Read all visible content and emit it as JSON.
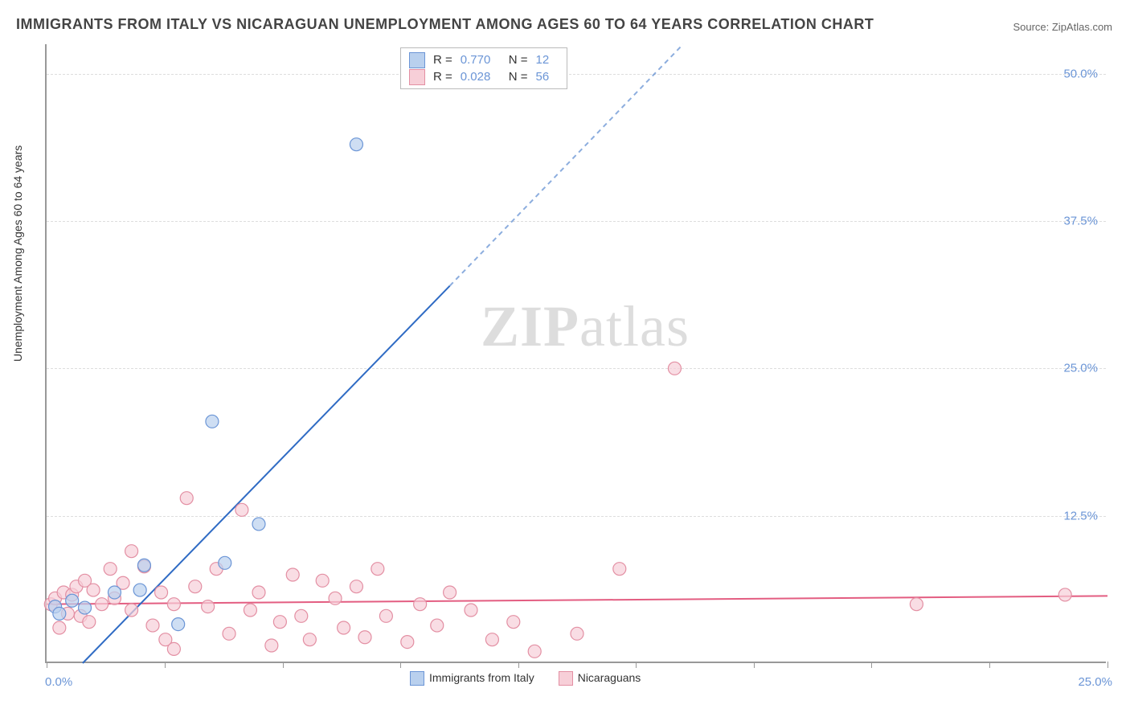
{
  "title": "IMMIGRANTS FROM ITALY VS NICARAGUAN UNEMPLOYMENT AMONG AGES 60 TO 64 YEARS CORRELATION CHART",
  "source": "Source: ZipAtlas.com",
  "yaxis_label": "Unemployment Among Ages 60 to 64 years",
  "watermark_bold": "ZIP",
  "watermark_rest": "atlas",
  "chart": {
    "type": "scatter-correlation",
    "background_color": "#ffffff",
    "grid_color": "#dddddd",
    "axis_color": "#999999",
    "xlim": [
      0.0,
      25.0
    ],
    "ylim": [
      0.0,
      52.5
    ],
    "ytick_labels": [
      "12.5%",
      "25.0%",
      "37.5%",
      "50.0%"
    ],
    "ytick_values": [
      12.5,
      25.0,
      37.5,
      50.0
    ],
    "xtick_values": [
      0,
      2.78,
      5.56,
      8.33,
      11.11,
      13.89,
      16.67,
      19.44,
      22.22,
      25.0
    ],
    "xaxis_start": "0.0%",
    "xaxis_end": "25.0%",
    "ytick_color": "#6b95d6",
    "marker_radius": 8,
    "marker_stroke_width": 1.2,
    "line_width": 2,
    "series": [
      {
        "name": "Immigrants from Italy",
        "fill": "#b9d0ee",
        "stroke": "#6b95d6",
        "line_color": "#2f6bc4",
        "R": "0.770",
        "N": "12",
        "legend_swatch_fill": "#b9d0ee",
        "legend_swatch_stroke": "#6b95d6",
        "points": [
          [
            0.2,
            4.8
          ],
          [
            0.3,
            4.2
          ],
          [
            0.6,
            5.3
          ],
          [
            0.9,
            4.7
          ],
          [
            1.6,
            6.0
          ],
          [
            2.2,
            6.2
          ],
          [
            2.3,
            8.3
          ],
          [
            3.1,
            3.3
          ],
          [
            3.9,
            20.5
          ],
          [
            4.2,
            8.5
          ],
          [
            5.0,
            11.8
          ],
          [
            7.3,
            44.0
          ]
        ],
        "trend": {
          "x1": 0.85,
          "y1": 0.0,
          "x2_solid": 9.5,
          "y2_solid": 32.0,
          "x2_dash": 15.0,
          "y2_dash": 52.5
        }
      },
      {
        "name": "Nicaraguans",
        "fill": "#f7cfd8",
        "stroke": "#e38fa3",
        "line_color": "#e35d81",
        "R": "0.028",
        "N": "56",
        "legend_swatch_fill": "#f7cfd8",
        "legend_swatch_stroke": "#e38fa3",
        "points": [
          [
            0.1,
            5.0
          ],
          [
            0.2,
            5.5
          ],
          [
            0.3,
            3.0
          ],
          [
            0.4,
            6.0
          ],
          [
            0.5,
            4.2
          ],
          [
            0.6,
            5.8
          ],
          [
            0.7,
            6.5
          ],
          [
            0.8,
            4.0
          ],
          [
            0.9,
            7.0
          ],
          [
            1.0,
            3.5
          ],
          [
            1.1,
            6.2
          ],
          [
            1.3,
            5.0
          ],
          [
            1.5,
            8.0
          ],
          [
            1.6,
            5.5
          ],
          [
            1.8,
            6.8
          ],
          [
            2.0,
            4.5
          ],
          [
            2.0,
            9.5
          ],
          [
            2.3,
            8.2
          ],
          [
            2.5,
            3.2
          ],
          [
            2.7,
            6.0
          ],
          [
            2.8,
            2.0
          ],
          [
            3.0,
            5.0
          ],
          [
            3.0,
            1.2
          ],
          [
            3.3,
            14.0
          ],
          [
            3.5,
            6.5
          ],
          [
            3.8,
            4.8
          ],
          [
            4.0,
            8.0
          ],
          [
            4.3,
            2.5
          ],
          [
            4.6,
            13.0
          ],
          [
            4.8,
            4.5
          ],
          [
            5.0,
            6.0
          ],
          [
            5.3,
            1.5
          ],
          [
            5.5,
            3.5
          ],
          [
            5.8,
            7.5
          ],
          [
            6.0,
            4.0
          ],
          [
            6.2,
            2.0
          ],
          [
            6.5,
            7.0
          ],
          [
            6.8,
            5.5
          ],
          [
            7.0,
            3.0
          ],
          [
            7.3,
            6.5
          ],
          [
            7.5,
            2.2
          ],
          [
            7.8,
            8.0
          ],
          [
            8.0,
            4.0
          ],
          [
            8.5,
            1.8
          ],
          [
            8.8,
            5.0
          ],
          [
            9.2,
            3.2
          ],
          [
            9.5,
            6.0
          ],
          [
            10.0,
            4.5
          ],
          [
            10.5,
            2.0
          ],
          [
            11.0,
            3.5
          ],
          [
            11.5,
            1.0
          ],
          [
            12.5,
            2.5
          ],
          [
            13.5,
            8.0
          ],
          [
            14.8,
            25.0
          ],
          [
            20.5,
            5.0
          ],
          [
            24.0,
            5.8
          ]
        ],
        "trend": {
          "x1": 0.0,
          "y1": 5.0,
          "x2": 25.0,
          "y2": 5.7
        }
      }
    ]
  }
}
